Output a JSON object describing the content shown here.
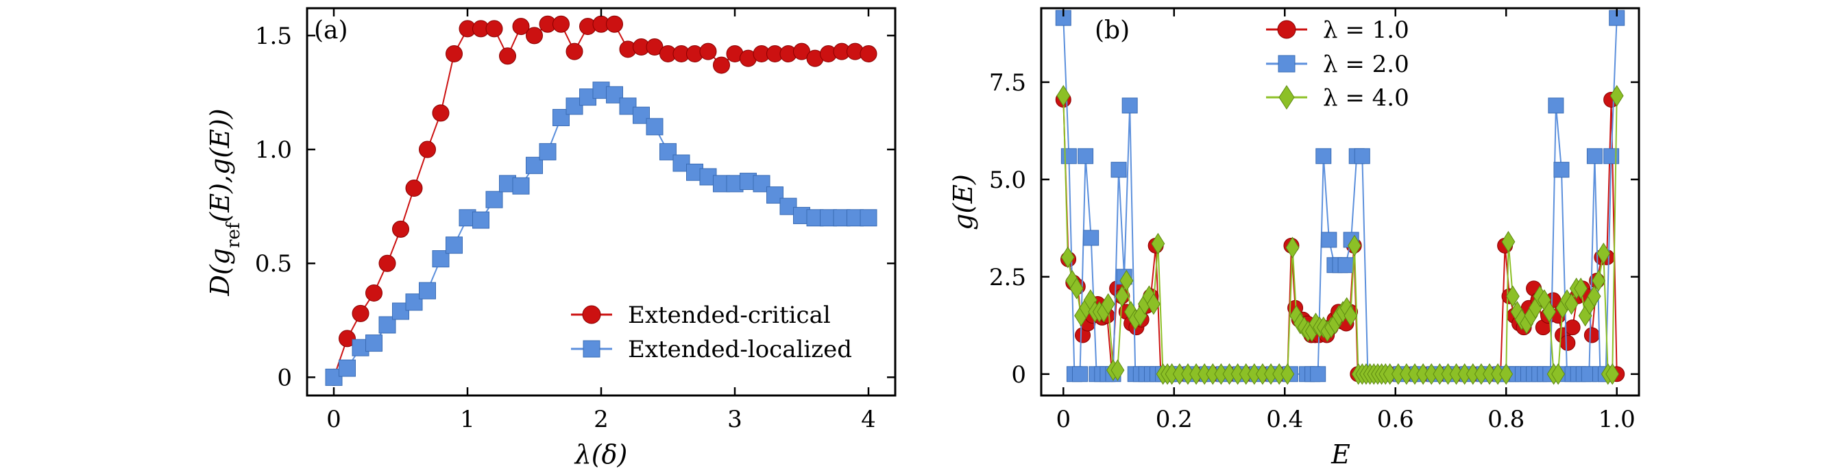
{
  "chart_data": [
    {
      "type": "line",
      "panel_label": "(a)",
      "xlabel": "λ(δ)",
      "ylabel": "D(g_ref(E), g(E))",
      "ylabel_parts": {
        "pre": "D(g",
        "sub": "ref",
        "post": "(E),g(E))"
      },
      "xlim": [
        -0.2,
        4.2
      ],
      "ylim": [
        -0.08,
        1.62
      ],
      "xticks": [
        0,
        1,
        2,
        3,
        4
      ],
      "xtick_labels": [
        "0",
        "1",
        "2",
        "3",
        "4"
      ],
      "yticks": [
        0,
        0.5,
        1.0,
        1.5
      ],
      "ytick_labels": [
        "0",
        "0.5",
        "1.0",
        "1.5"
      ],
      "legend_position": "lower-right",
      "series": [
        {
          "name": "Extended-critical",
          "marker": "circle",
          "color": "#cc1111",
          "x": [
            0,
            0.1,
            0.2,
            0.3,
            0.4,
            0.5,
            0.6,
            0.7,
            0.8,
            0.9,
            1.0,
            1.1,
            1.2,
            1.3,
            1.4,
            1.5,
            1.6,
            1.7,
            1.8,
            1.9,
            2.0,
            2.1,
            2.2,
            2.3,
            2.4,
            2.5,
            2.6,
            2.7,
            2.8,
            2.9,
            3.0,
            3.1,
            3.2,
            3.3,
            3.4,
            3.5,
            3.6,
            3.7,
            3.8,
            3.9,
            4.0
          ],
          "y": [
            0.0,
            0.17,
            0.28,
            0.37,
            0.5,
            0.65,
            0.83,
            1.0,
            1.16,
            1.42,
            1.53,
            1.53,
            1.53,
            1.41,
            1.54,
            1.5,
            1.55,
            1.55,
            1.43,
            1.54,
            1.55,
            1.55,
            1.44,
            1.45,
            1.45,
            1.42,
            1.42,
            1.42,
            1.43,
            1.37,
            1.42,
            1.4,
            1.42,
            1.42,
            1.42,
            1.43,
            1.4,
            1.42,
            1.43,
            1.43,
            1.42
          ]
        },
        {
          "name": "Extended-localized",
          "marker": "square",
          "color": "#5b8fdc",
          "x": [
            0,
            0.1,
            0.2,
            0.3,
            0.4,
            0.5,
            0.6,
            0.7,
            0.8,
            0.9,
            1.0,
            1.1,
            1.2,
            1.3,
            1.4,
            1.5,
            1.6,
            1.7,
            1.8,
            1.9,
            2.0,
            2.1,
            2.2,
            2.3,
            2.4,
            2.5,
            2.6,
            2.7,
            2.8,
            2.9,
            3.0,
            3.1,
            3.2,
            3.3,
            3.4,
            3.5,
            3.6,
            3.7,
            3.8,
            3.9,
            4.0
          ],
          "y": [
            0.0,
            0.04,
            0.13,
            0.15,
            0.23,
            0.29,
            0.33,
            0.38,
            0.52,
            0.58,
            0.7,
            0.69,
            0.78,
            0.85,
            0.84,
            0.93,
            0.99,
            1.14,
            1.19,
            1.23,
            1.26,
            1.24,
            1.19,
            1.15,
            1.1,
            0.99,
            0.94,
            0.9,
            0.88,
            0.85,
            0.85,
            0.86,
            0.85,
            0.8,
            0.75,
            0.71,
            0.7,
            0.7,
            0.7,
            0.7,
            0.7
          ]
        }
      ]
    },
    {
      "type": "line",
      "panel_label": "(b)",
      "xlabel": "E",
      "ylabel": "g(E)",
      "xlim": [
        -0.04,
        1.04
      ],
      "ylim": [
        -0.55,
        9.4
      ],
      "xticks": [
        0,
        0.2,
        0.4,
        0.6,
        0.8,
        1.0
      ],
      "xtick_labels": [
        "0",
        "0.2",
        "0.4",
        "0.6",
        "0.8",
        "1.0"
      ],
      "yticks": [
        0,
        2.5,
        5.0,
        7.5
      ],
      "ytick_labels": [
        "0",
        "2.5",
        "5.0",
        "7.5"
      ],
      "legend_position": "top-center",
      "series": [
        {
          "name": "λ = 1.0",
          "marker": "circle",
          "color": "#cc1111",
          "x": [
            0.0,
            0.009,
            0.018,
            0.026,
            0.035,
            0.044,
            0.053,
            0.062,
            0.07,
            0.079,
            0.088,
            0.097,
            0.106,
            0.114,
            0.123,
            0.132,
            0.141,
            0.15,
            0.158,
            0.167,
            0.176,
            0.185,
            0.194,
            0.202,
            0.22,
            0.24,
            0.26,
            0.28,
            0.3,
            0.32,
            0.34,
            0.36,
            0.38,
            0.4,
            0.405,
            0.412,
            0.419,
            0.426,
            0.433,
            0.441,
            0.448,
            0.455,
            0.462,
            0.469,
            0.476,
            0.483,
            0.49,
            0.497,
            0.504,
            0.511,
            0.518,
            0.525,
            0.532,
            0.539,
            0.546,
            0.553,
            0.56,
            0.567,
            0.574,
            0.581,
            0.6,
            0.62,
            0.64,
            0.66,
            0.68,
            0.7,
            0.72,
            0.74,
            0.76,
            0.78,
            0.79,
            0.798,
            0.806,
            0.815,
            0.824,
            0.832,
            0.841,
            0.85,
            0.858,
            0.867,
            0.876,
            0.885,
            0.894,
            0.902,
            0.911,
            0.92,
            0.929,
            0.938,
            0.946,
            0.955,
            0.964,
            0.973,
            0.982,
            0.99,
            1.0
          ],
          "y": [
            7.05,
            2.95,
            2.35,
            2.25,
            1.0,
            1.3,
            1.5,
            1.8,
            1.45,
            1.5,
            0.0,
            2.2,
            2.0,
            1.6,
            1.3,
            1.2,
            1.4,
            1.75,
            2.0,
            3.3,
            0.0,
            0.0,
            0.0,
            0.0,
            0.0,
            0.0,
            0.0,
            0.0,
            0.0,
            0.0,
            0.0,
            0.0,
            0.0,
            0.0,
            0.0,
            3.3,
            1.7,
            1.4,
            1.4,
            1.3,
            1.0,
            1.0,
            1.0,
            1.2,
            1.0,
            1.2,
            1.4,
            1.6,
            1.35,
            1.3,
            1.6,
            3.3,
            0.0,
            0.0,
            0.0,
            0.0,
            0.0,
            0.0,
            0.0,
            0.0,
            0.0,
            0.0,
            0.0,
            0.0,
            0.0,
            0.0,
            0.0,
            0.0,
            0.0,
            0.0,
            0.0,
            3.3,
            2.0,
            1.5,
            1.3,
            1.2,
            1.7,
            2.2,
            1.9,
            1.2,
            1.5,
            1.9,
            1.5,
            1.0,
            0.8,
            1.2,
            2.0,
            2.2,
            2.0,
            1.0,
            2.4,
            3.0,
            3.0,
            7.05,
            0.0
          ]
        },
        {
          "name": "λ = 2.0",
          "marker": "square",
          "color": "#5b8fdc",
          "x": [
            0.0,
            0.01,
            0.02,
            0.03,
            0.04,
            0.05,
            0.06,
            0.07,
            0.08,
            0.09,
            0.1,
            0.11,
            0.12,
            0.13,
            0.14,
            0.15,
            0.16,
            0.17,
            0.18,
            0.19,
            0.2,
            0.23,
            0.26,
            0.29,
            0.32,
            0.35,
            0.38,
            0.41,
            0.44,
            0.45,
            0.46,
            0.47,
            0.48,
            0.49,
            0.5,
            0.51,
            0.52,
            0.53,
            0.54,
            0.55,
            0.56,
            0.57,
            0.58,
            0.61,
            0.64,
            0.67,
            0.7,
            0.73,
            0.76,
            0.79,
            0.8,
            0.81,
            0.82,
            0.83,
            0.84,
            0.85,
            0.86,
            0.87,
            0.88,
            0.89,
            0.9,
            0.91,
            0.92,
            0.93,
            0.94,
            0.95,
            0.96,
            0.97,
            0.98,
            0.99,
            1.0
          ],
          "y": [
            9.15,
            5.6,
            0.0,
            0.0,
            5.6,
            3.5,
            0.0,
            0.0,
            0.0,
            0.0,
            5.25,
            2.5,
            6.9,
            0.0,
            0.0,
            0.0,
            0.0,
            0.0,
            0.0,
            0.0,
            0.0,
            0.0,
            0.0,
            0.0,
            0.0,
            0.0,
            0.0,
            0.0,
            0.0,
            0.0,
            0.0,
            5.6,
            3.45,
            2.8,
            2.8,
            2.8,
            3.45,
            5.6,
            5.6,
            0.0,
            0.0,
            0.0,
            0.0,
            0.0,
            0.0,
            0.0,
            0.0,
            0.0,
            0.0,
            0.0,
            0.0,
            0.0,
            0.0,
            0.0,
            0.0,
            0.0,
            0.0,
            0.0,
            0.0,
            6.9,
            5.25,
            0.0,
            0.0,
            0.0,
            0.0,
            0.0,
            5.6,
            0.0,
            0.0,
            5.6,
            9.15
          ]
        },
        {
          "name": "λ = 4.0",
          "marker": "diamond",
          "color": "#8cc026",
          "x": [
            0.0,
            0.008,
            0.016,
            0.024,
            0.032,
            0.041,
            0.049,
            0.057,
            0.065,
            0.073,
            0.081,
            0.09,
            0.098,
            0.106,
            0.114,
            0.122,
            0.13,
            0.139,
            0.147,
            0.155,
            0.163,
            0.171,
            0.18,
            0.188,
            0.196,
            0.21,
            0.225,
            0.24,
            0.255,
            0.27,
            0.285,
            0.3,
            0.315,
            0.33,
            0.345,
            0.36,
            0.375,
            0.39,
            0.405,
            0.414,
            0.421,
            0.428,
            0.435,
            0.442,
            0.449,
            0.456,
            0.463,
            0.47,
            0.477,
            0.484,
            0.491,
            0.498,
            0.505,
            0.512,
            0.519,
            0.526,
            0.533,
            0.54,
            0.547,
            0.554,
            0.561,
            0.568,
            0.575,
            0.582,
            0.59,
            0.605,
            0.62,
            0.635,
            0.65,
            0.665,
            0.68,
            0.695,
            0.71,
            0.725,
            0.74,
            0.755,
            0.77,
            0.785,
            0.8,
            0.804,
            0.812,
            0.82,
            0.828,
            0.837,
            0.845,
            0.853,
            0.861,
            0.869,
            0.878,
            0.886,
            0.894,
            0.902,
            0.91,
            0.918,
            0.927,
            0.935,
            0.943,
            0.951,
            0.959,
            0.967,
            0.976,
            0.984,
            0.992,
            1.0
          ],
          "y": [
            7.15,
            3.0,
            2.4,
            2.2,
            1.5,
            1.7,
            1.9,
            1.6,
            1.6,
            1.6,
            1.8,
            0.1,
            0.1,
            2.0,
            2.4,
            1.6,
            1.4,
            1.5,
            1.8,
            2.0,
            1.8,
            3.35,
            0.0,
            0.0,
            0.0,
            0.0,
            0.0,
            0.0,
            0.0,
            0.0,
            0.0,
            0.0,
            0.0,
            0.0,
            0.0,
            0.0,
            0.0,
            0.0,
            0.0,
            3.25,
            1.5,
            1.3,
            1.2,
            1.1,
            1.1,
            1.3,
            1.2,
            1.2,
            1.1,
            1.2,
            1.3,
            1.5,
            1.6,
            1.7,
            1.5,
            3.3,
            0.0,
            0.0,
            0.0,
            0.0,
            0.0,
            0.0,
            0.0,
            0.0,
            0.0,
            0.0,
            0.0,
            0.0,
            0.0,
            0.0,
            0.0,
            0.0,
            0.0,
            0.0,
            0.0,
            0.0,
            0.0,
            0.0,
            0.0,
            3.4,
            2.0,
            1.6,
            1.4,
            1.3,
            1.5,
            1.7,
            2.0,
            1.9,
            1.6,
            0.0,
            0.0,
            1.7,
            1.9,
            1.8,
            2.2,
            2.2,
            1.5,
            1.8,
            2.0,
            2.4,
            3.1,
            0.0,
            0.0,
            7.15
          ]
        }
      ]
    }
  ]
}
